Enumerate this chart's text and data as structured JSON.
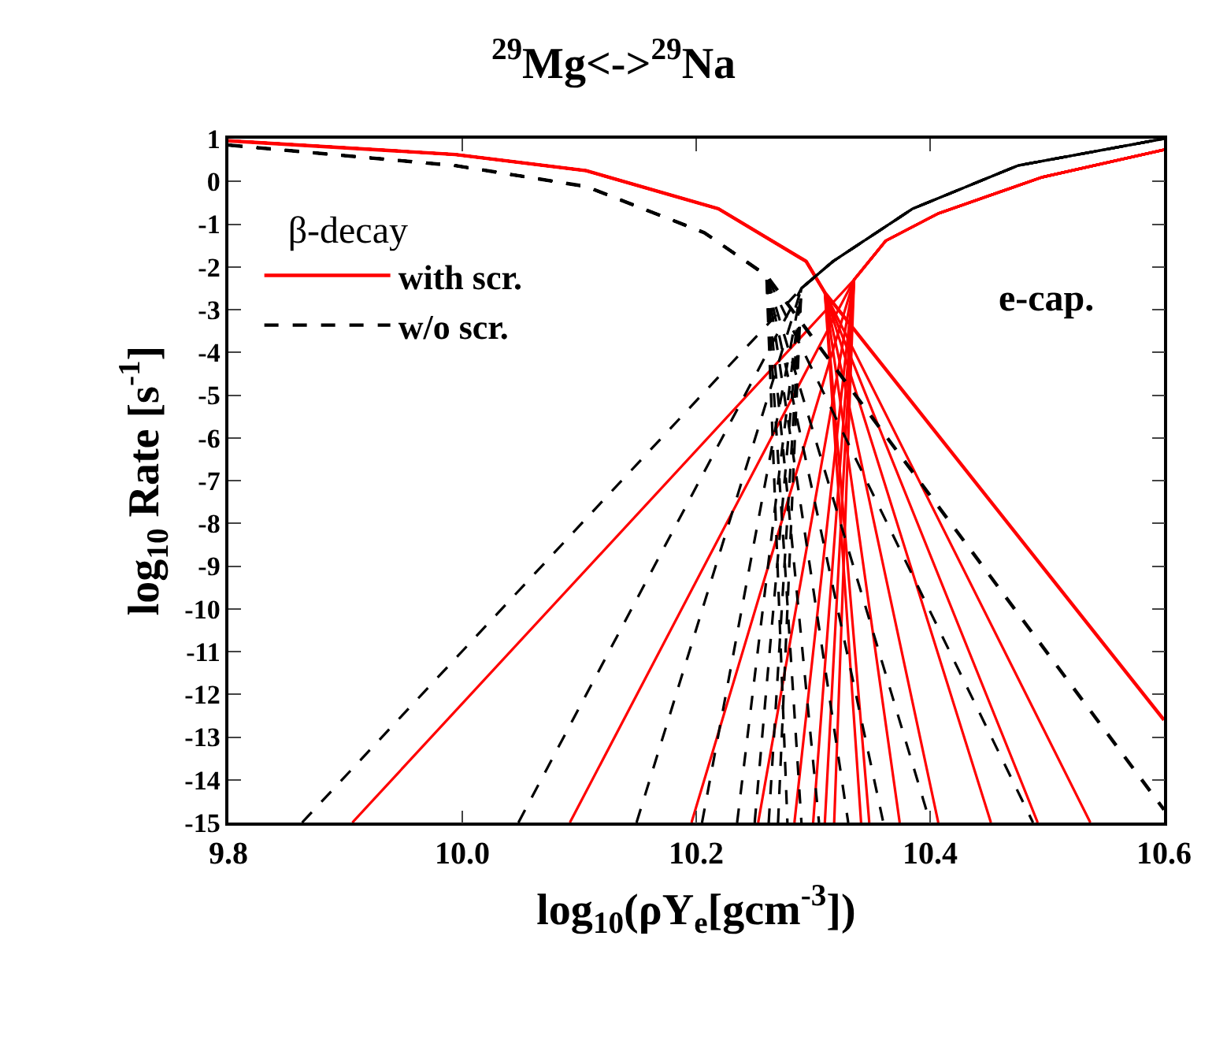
{
  "chart_data": {
    "type": "line",
    "title": "$^{29}$Mg<->$^{29}$Na",
    "xlabel": "log$_{10}$(ρY$_{e}$[gcm$^{-3}$])",
    "ylabel": "log$_{10}$ Rate [s$^{-1}$]",
    "legend_title": "β-decay",
    "annotations": [
      "e-cap."
    ],
    "xlim": [
      9.8,
      10.6
    ],
    "xticks": [
      9.8,
      {
        "value": 10,
        "label": "10.0"
      },
      10.2,
      10.4,
      10.6
    ],
    "ylim": [
      -15,
      1
    ],
    "yticks": [
      1,
      0,
      -1,
      -2,
      -3,
      -4,
      -5,
      -6,
      -7,
      -8,
      -9,
      -10,
      -11,
      -12,
      -13,
      -14,
      -15
    ],
    "legend": "top left",
    "marker": "none",
    "series": [
      {
        "name": "with scr.",
        "color": "#ff0000",
        "line_style": "solid",
        "x": [
          9.8,
          9.994,
          10.106,
          10.219,
          10.294,
          10.31,
          10.6
        ],
        "values": [
          0.95,
          0.63,
          0.25,
          -0.64,
          -1.87,
          -2.6,
          -12.6
        ]
      },
      {
        "color": "#ff0000",
        "line_style": "solid",
        "x": [
          9.8,
          9.994,
          10.106,
          10.219,
          10.294,
          10.31,
          10.537
        ],
        "values": [
          0.95,
          0.63,
          0.25,
          -0.64,
          -1.87,
          -2.6,
          -15
        ]
      },
      {
        "color": "#ff0000",
        "line_style": "solid",
        "x": [
          9.8,
          9.994,
          10.106,
          10.219,
          10.294,
          10.31,
          10.492
        ],
        "values": [
          0.95,
          0.63,
          0.25,
          -0.64,
          -1.87,
          -2.6,
          -15
        ]
      },
      {
        "color": "#ff0000",
        "line_style": "solid",
        "x": [
          9.8,
          9.994,
          10.106,
          10.219,
          10.294,
          10.31,
          10.452
        ],
        "values": [
          0.95,
          0.63,
          0.25,
          -0.64,
          -1.87,
          -2.6,
          -15
        ]
      },
      {
        "color": "#ff0000",
        "line_style": "solid",
        "x": [
          9.8,
          9.994,
          10.106,
          10.219,
          10.294,
          10.31,
          10.407
        ],
        "values": [
          0.95,
          0.63,
          0.25,
          -0.64,
          -1.87,
          -2.6,
          -15
        ]
      },
      {
        "color": "#ff0000",
        "line_style": "solid",
        "x": [
          9.8,
          9.994,
          10.106,
          10.219,
          10.294,
          10.31,
          10.374
        ],
        "values": [
          0.95,
          0.63,
          0.25,
          -0.64,
          -1.87,
          -2.6,
          -15
        ]
      },
      {
        "color": "#ff0000",
        "line_style": "solid",
        "x": [
          9.8,
          9.994,
          10.106,
          10.219,
          10.294,
          10.31,
          10.348
        ],
        "values": [
          0.95,
          0.63,
          0.25,
          -0.64,
          -1.87,
          -2.6,
          -15
        ]
      },
      {
        "color": "#ff0000",
        "line_style": "solid",
        "x": [
          9.8,
          9.994,
          10.106,
          10.219,
          10.294,
          10.31,
          10.341
        ],
        "values": [
          0.95,
          0.63,
          0.25,
          -0.64,
          -1.87,
          -2.6,
          -15
        ]
      },
      {
        "color": "#ff0000",
        "line_style": "solid",
        "x": [
          9.906,
          10.335,
          10.362,
          10.407,
          10.496,
          10.6
        ],
        "values": [
          -15,
          -2.3,
          -1.39,
          -0.75,
          0.1,
          0.74
        ]
      },
      {
        "color": "#ff0000",
        "line_style": "solid",
        "x": [
          10.092,
          10.335,
          10.362,
          10.407,
          10.496,
          10.6
        ],
        "values": [
          -15,
          -2.3,
          -1.39,
          -0.75,
          0.1,
          0.74
        ]
      },
      {
        "color": "#ff0000",
        "line_style": "solid",
        "x": [
          10.196,
          10.335,
          10.362,
          10.407,
          10.496,
          10.6
        ],
        "values": [
          -15,
          -2.3,
          -1.39,
          -0.75,
          0.1,
          0.74
        ]
      },
      {
        "color": "#ff0000",
        "line_style": "solid",
        "x": [
          10.253,
          10.335,
          10.362,
          10.407,
          10.496,
          10.6
        ],
        "values": [
          -15,
          -2.3,
          -1.39,
          -0.75,
          0.1,
          0.74
        ]
      },
      {
        "color": "#ff0000",
        "line_style": "solid",
        "x": [
          10.284,
          10.335,
          10.362,
          10.407,
          10.496,
          10.6
        ],
        "values": [
          -15,
          -2.3,
          -1.39,
          -0.75,
          0.1,
          0.74
        ]
      },
      {
        "color": "#ff0000",
        "line_style": "solid",
        "x": [
          10.3,
          10.335,
          10.362,
          10.407,
          10.496,
          10.6
        ],
        "values": [
          -15,
          -2.3,
          -1.39,
          -0.75,
          0.1,
          0.74
        ]
      },
      {
        "color": "#ff0000",
        "line_style": "solid",
        "x": [
          10.31,
          10.335,
          10.362,
          10.407,
          10.496,
          10.6
        ],
        "values": [
          -15,
          -2.3,
          -1.39,
          -0.75,
          0.1,
          0.74
        ]
      },
      {
        "color": "#ff0000",
        "line_style": "solid",
        "x": [
          10.318,
          10.335,
          10.362,
          10.407,
          10.496,
          10.6
        ],
        "values": [
          -15,
          -2.3,
          -1.39,
          -0.75,
          0.1,
          0.74
        ]
      },
      {
        "name": "w/o scr.",
        "color": "#000000",
        "line_style": "dashed",
        "x": [
          9.8,
          9.994,
          10.106,
          10.207,
          10.26,
          10.6
        ],
        "values": [
          0.85,
          0.37,
          -0.12,
          -1.2,
          -2.2,
          -14.7
        ]
      },
      {
        "color": "#000000",
        "line_style": "dashed",
        "x": [
          9.8,
          9.994,
          10.106,
          10.207,
          10.26,
          10.488
        ],
        "values": [
          0.85,
          0.37,
          -0.12,
          -1.2,
          -2.2,
          -15
        ]
      },
      {
        "color": "#000000",
        "line_style": "dashed",
        "x": [
          9.8,
          9.994,
          10.106,
          10.207,
          10.26,
          10.4
        ],
        "values": [
          0.85,
          0.37,
          -0.12,
          -1.2,
          -2.2,
          -15
        ]
      },
      {
        "color": "#000000",
        "line_style": "dashed",
        "x": [
          9.8,
          9.994,
          10.106,
          10.207,
          10.26,
          10.36
        ],
        "values": [
          0.85,
          0.37,
          -0.12,
          -1.2,
          -2.2,
          -15
        ]
      },
      {
        "color": "#000000",
        "line_style": "dashed",
        "x": [
          9.8,
          9.994,
          10.106,
          10.207,
          10.26,
          10.33
        ],
        "values": [
          0.85,
          0.37,
          -0.12,
          -1.2,
          -2.2,
          -15
        ]
      },
      {
        "color": "#000000",
        "line_style": "dashed",
        "x": [
          9.8,
          9.994,
          10.106,
          10.207,
          10.26,
          10.305
        ],
        "values": [
          0.85,
          0.37,
          -0.12,
          -1.2,
          -2.2,
          -15
        ]
      },
      {
        "color": "#000000",
        "line_style": "dashed",
        "x": [
          9.8,
          9.994,
          10.106,
          10.207,
          10.26,
          10.29
        ],
        "values": [
          0.85,
          0.37,
          -0.12,
          -1.2,
          -2.2,
          -15
        ]
      },
      {
        "color": "#000000",
        "line_style": "dashed",
        "x": [
          9.8,
          9.994,
          10.106,
          10.207,
          10.26,
          10.278
        ],
        "values": [
          0.85,
          0.37,
          -0.12,
          -1.2,
          -2.2,
          -15
        ]
      },
      {
        "color": "#000000",
        "line_style": "dashed",
        "x": [
          9.863,
          10.29,
          10.317,
          10.385,
          10.475,
          10.6
        ],
        "values": [
          -15,
          -2.5,
          -1.87,
          -0.64,
          0.37,
          1.0
        ]
      },
      {
        "color": "#000000",
        "line_style": "dashed",
        "x": [
          10.048,
          10.29,
          10.317,
          10.385,
          10.475,
          10.6
        ],
        "values": [
          -15,
          -2.5,
          -1.87,
          -0.64,
          0.37,
          1.0
        ]
      },
      {
        "color": "#000000",
        "line_style": "dashed",
        "x": [
          10.149,
          10.29,
          10.317,
          10.385,
          10.475,
          10.6
        ],
        "values": [
          -15,
          -2.5,
          -1.87,
          -0.64,
          0.37,
          1.0
        ]
      },
      {
        "color": "#000000",
        "line_style": "dashed",
        "x": [
          10.205,
          10.29,
          10.317,
          10.385,
          10.475,
          10.6
        ],
        "values": [
          -15,
          -2.5,
          -1.87,
          -0.64,
          0.37,
          1.0
        ]
      },
      {
        "color": "#000000",
        "line_style": "dashed",
        "x": [
          10.235,
          10.29,
          10.317,
          10.385,
          10.475,
          10.6
        ],
        "values": [
          -15,
          -2.5,
          -1.87,
          -0.64,
          0.37,
          1.0
        ]
      },
      {
        "color": "#000000",
        "line_style": "dashed",
        "x": [
          10.25,
          10.29,
          10.317,
          10.385,
          10.475,
          10.6
        ],
        "values": [
          -15,
          -2.5,
          -1.87,
          -0.64,
          0.37,
          1.0
        ]
      },
      {
        "color": "#000000",
        "line_style": "dashed",
        "x": [
          10.262,
          10.29,
          10.317,
          10.385,
          10.475,
          10.6
        ],
        "values": [
          -15,
          -2.5,
          -1.87,
          -0.64,
          0.37,
          1.0
        ]
      },
      {
        "color": "#000000",
        "line_style": "dashed",
        "x": [
          10.27,
          10.29,
          10.317,
          10.385,
          10.475,
          10.6
        ],
        "values": [
          -15,
          -2.5,
          -1.87,
          -0.64,
          0.37,
          1.0
        ]
      }
    ]
  }
}
